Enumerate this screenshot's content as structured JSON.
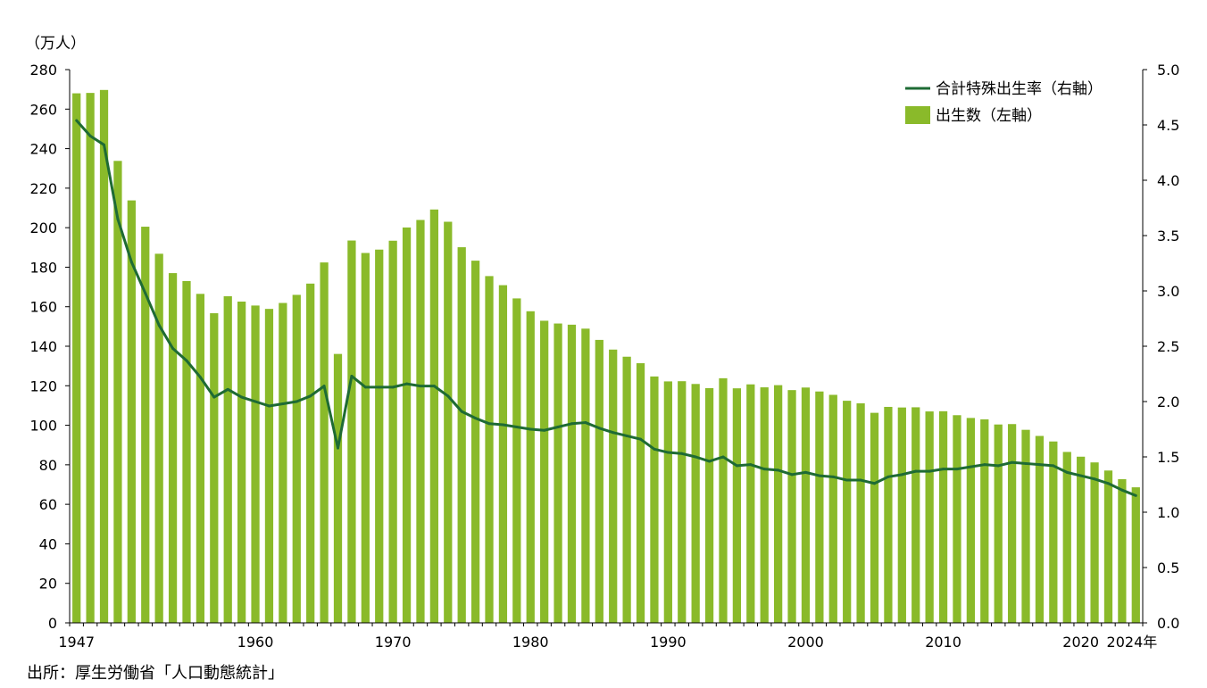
{
  "chart_data": {
    "type": "bar",
    "left_unit_label": "（万人）",
    "x_tick_labels": [
      "1947",
      "1960",
      "1970",
      "1980",
      "1990",
      "2000",
      "2010",
      "2020",
      "2024年"
    ],
    "left_axis": {
      "ylim": [
        0,
        280
      ],
      "ticks": [
        "0",
        "20",
        "40",
        "60",
        "80",
        "100",
        "120",
        "140",
        "160",
        "180",
        "200",
        "220",
        "240",
        "260",
        "280"
      ]
    },
    "right_axis": {
      "ylim": [
        0,
        5
      ],
      "ticks": [
        "0.0",
        "0.5",
        "1.0",
        "1.5",
        "2.0",
        "2.5",
        "3.0",
        "3.5",
        "4.0",
        "4.5",
        "5.0"
      ]
    },
    "grid": false,
    "legend_position": "top-right",
    "x": [
      1947,
      1948,
      1949,
      1950,
      1951,
      1952,
      1953,
      1954,
      1955,
      1956,
      1957,
      1958,
      1959,
      1960,
      1961,
      1962,
      1963,
      1964,
      1965,
      1966,
      1967,
      1968,
      1969,
      1970,
      1971,
      1972,
      1973,
      1974,
      1975,
      1976,
      1977,
      1978,
      1979,
      1980,
      1981,
      1982,
      1983,
      1984,
      1985,
      1986,
      1987,
      1988,
      1989,
      1990,
      1991,
      1992,
      1993,
      1994,
      1995,
      1996,
      1997,
      1998,
      1999,
      2000,
      2001,
      2002,
      2003,
      2004,
      2005,
      2006,
      2007,
      2008,
      2009,
      2010,
      2011,
      2012,
      2013,
      2014,
      2015,
      2016,
      2017,
      2018,
      2019,
      2020,
      2021,
      2022,
      2023,
      2024
    ],
    "series": [
      {
        "name": "出生数（左軸）",
        "axis": "left",
        "color": "#8aba2a",
        "values": [
          268,
          268.2,
          269.7,
          233.8,
          213.8,
          200.5,
          186.8,
          177,
          173,
          166.5,
          156.7,
          165.3,
          162.6,
          160.6,
          158.9,
          161.9,
          166,
          171.7,
          182.4,
          136.1,
          193.5,
          187.2,
          188.9,
          193.4,
          200.1,
          203.9,
          209.2,
          203,
          190.1,
          183.3,
          175.5,
          170.9,
          164.2,
          157.7,
          152.9,
          151.5,
          150.9,
          148.9,
          143.2,
          138.3,
          134.7,
          131.4,
          124.7,
          122.2,
          122.3,
          120.9,
          118.8,
          123.8,
          118.7,
          120.7,
          119.2,
          120.3,
          117.8,
          119.1,
          117.1,
          115.4,
          112.4,
          111.1,
          106.3,
          109.3,
          109,
          109.1,
          107,
          107.1,
          105.1,
          103.7,
          103,
          100.4,
          100.6,
          97.7,
          94.6,
          91.8,
          86.5,
          84.1,
          81.2,
          77.1,
          72.7,
          68.6
        ]
      },
      {
        "name": "合計特殊出生率（右軸）",
        "axis": "right",
        "color": "#1e6b34",
        "values": [
          4.54,
          4.4,
          4.32,
          3.65,
          3.26,
          2.98,
          2.69,
          2.48,
          2.37,
          2.22,
          2.04,
          2.11,
          2.04,
          2.0,
          1.96,
          1.98,
          2.0,
          2.05,
          2.14,
          1.58,
          2.23,
          2.13,
          2.13,
          2.13,
          2.16,
          2.14,
          2.14,
          2.05,
          1.91,
          1.85,
          1.8,
          1.79,
          1.77,
          1.75,
          1.74,
          1.77,
          1.8,
          1.81,
          1.76,
          1.72,
          1.69,
          1.66,
          1.57,
          1.54,
          1.53,
          1.5,
          1.46,
          1.5,
          1.42,
          1.43,
          1.39,
          1.38,
          1.34,
          1.36,
          1.33,
          1.32,
          1.29,
          1.29,
          1.26,
          1.32,
          1.34,
          1.37,
          1.37,
          1.39,
          1.39,
          1.41,
          1.43,
          1.42,
          1.45,
          1.44,
          1.43,
          1.42,
          1.36,
          1.33,
          1.3,
          1.26,
          1.2,
          1.15
        ]
      }
    ]
  },
  "source_note": "出所：厚生労働省「人口動態統計」"
}
